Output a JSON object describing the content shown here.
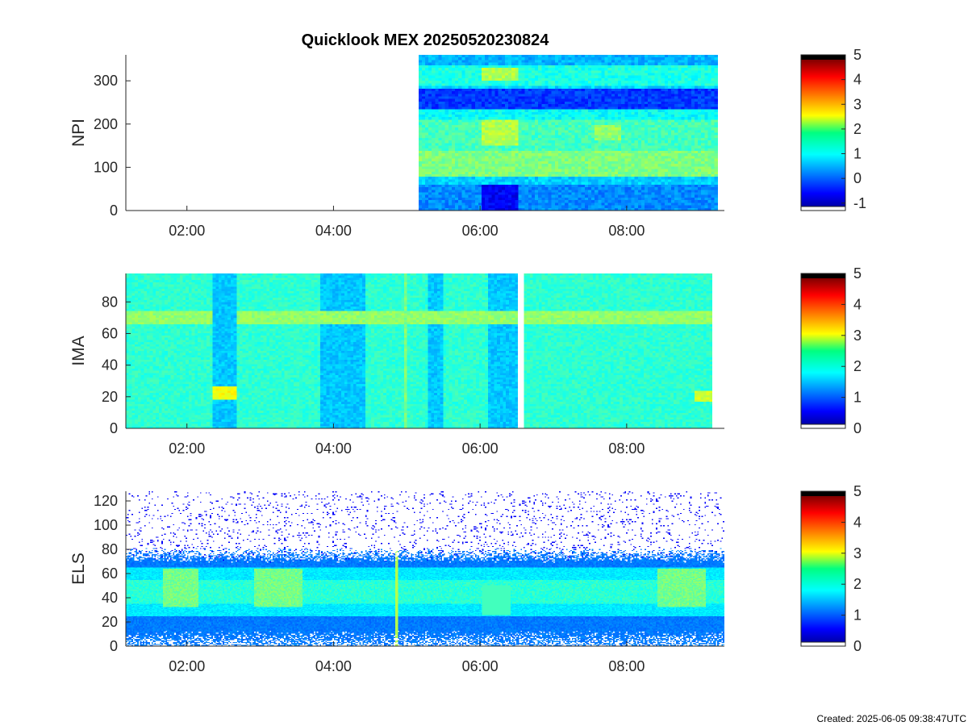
{
  "title": "Quicklook MEX 20250520230824",
  "footer": "Created: 2025-06-05 09:38:47UTC",
  "chart_data": [
    {
      "type": "heatmap",
      "ylabel": "NPI",
      "x_range": [
        "01:10",
        "09:20"
      ],
      "x_ticks": [
        "02:00",
        "04:00",
        "06:00",
        "08:00"
      ],
      "ylim": [
        0,
        360
      ],
      "y_ticks": [
        0,
        100,
        200,
        300
      ],
      "data_start": "05:10",
      "data_end": "09:15",
      "colorbar": {
        "min": -1.3,
        "max": 5,
        "ticks": [
          5,
          4,
          3,
          2,
          1,
          0,
          -1
        ]
      }
    },
    {
      "type": "heatmap",
      "ylabel": "IMA",
      "x_range": [
        "01:10",
        "09:20"
      ],
      "x_ticks": [
        "02:00",
        "04:00",
        "06:00",
        "08:00"
      ],
      "ylim": [
        0,
        98
      ],
      "y_ticks": [
        0,
        20,
        40,
        60,
        80
      ],
      "data_start": "01:10",
      "data_end": "09:10",
      "gap": [
        "06:30",
        "06:35"
      ],
      "colorbar": {
        "min": 0,
        "max": 5,
        "ticks": [
          5,
          4,
          3,
          2,
          1,
          0
        ]
      }
    },
    {
      "type": "heatmap",
      "ylabel": "ELS",
      "x_range": [
        "01:10",
        "09:20"
      ],
      "x_ticks": [
        "02:00",
        "04:00",
        "06:00",
        "08:00"
      ],
      "ylim": [
        0,
        128
      ],
      "y_ticks": [
        0,
        20,
        40,
        60,
        80,
        100,
        120
      ],
      "data_start": "01:10",
      "data_end": "09:20",
      "colorbar": {
        "min": 0,
        "max": 5,
        "ticks": [
          5,
          4,
          3,
          2,
          1,
          0
        ]
      }
    }
  ]
}
